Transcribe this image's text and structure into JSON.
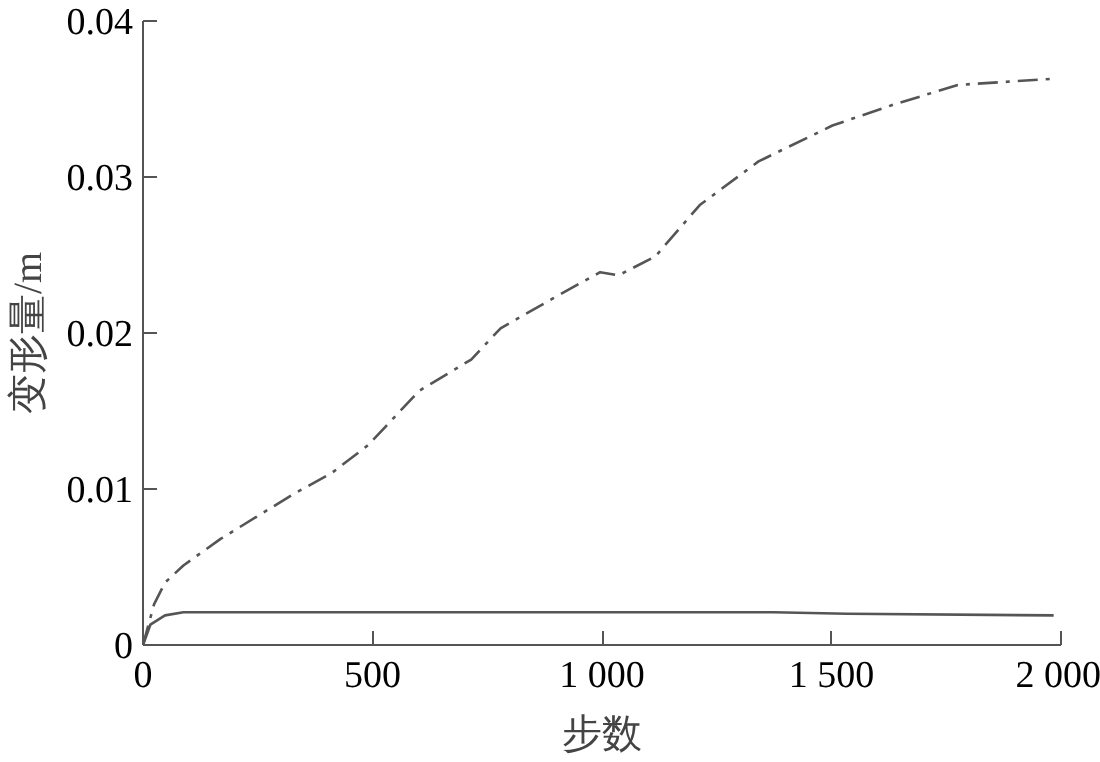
{
  "chart_data": {
    "type": "line",
    "xlabel": "步数",
    "ylabel": "变形量/m",
    "xlim": [
      0,
      2000
    ],
    "ylim": [
      0,
      0.04
    ],
    "xticks": [
      0,
      500,
      {
        "value": 1000,
        "label": "1 000"
      },
      {
        "value": 1500,
        "label": "1 500"
      },
      {
        "value": 2000,
        "label": "2 000"
      }
    ],
    "yticks": [
      0,
      0.01,
      0.02,
      0.03,
      0.04
    ],
    "grid": false,
    "marker": "none",
    "series": [
      {
        "color": "#555555",
        "line_style": "dashed",
        "x": [
          0,
          24,
          48,
          88,
          169,
          329,
          410,
          490,
          602,
          715,
          779,
          892,
          996,
          1036,
          1116,
          1213,
          1341,
          1502,
          1631,
          1775,
          1984
        ],
        "values": [
          0,
          0.0026,
          0.004,
          0.0051,
          0.0068,
          0.0097,
          0.011,
          0.0128,
          0.0163,
          0.0183,
          0.0203,
          0.0222,
          0.0239,
          0.0237,
          0.0249,
          0.0282,
          0.031,
          0.0333,
          0.0346,
          0.0359,
          0.0363
        ]
      },
      {
        "color": "#555555",
        "line_style": "solid",
        "x": [
          0,
          16,
          48,
          88,
          1373,
          1534,
          1984
        ],
        "values": [
          0,
          0.0013,
          0.0019,
          0.0021,
          0.0021,
          0.002,
          0.0019
        ]
      }
    ]
  }
}
